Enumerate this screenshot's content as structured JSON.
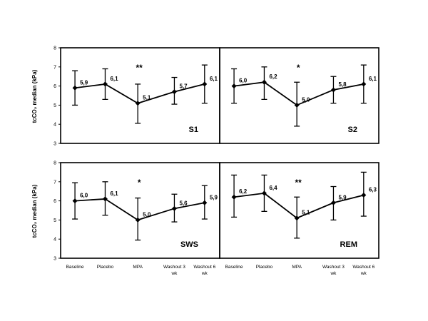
{
  "figure": {
    "ylabel_top": "tcCO₂ median (kPa)",
    "ylabel_bottom": "tcCO₂ median (kPa)"
  },
  "chart_data": [
    {
      "type": "line",
      "panel": "S1",
      "categories": [
        "Baseline",
        "Placebo",
        "MPA",
        "Washout 3 wk",
        "Washout 6 wk"
      ],
      "values": [
        5.9,
        6.1,
        5.1,
        5.7,
        6.1
      ],
      "value_labels": [
        "5,9",
        "6,1",
        "5,1",
        "5,7",
        "6,1"
      ],
      "error_low": [
        5.0,
        5.3,
        4.05,
        5.05,
        5.1
      ],
      "error_high": [
        6.8,
        6.9,
        6.1,
        6.45,
        7.1
      ],
      "significance": {
        "category": "MPA",
        "marker": "**"
      },
      "ylim": [
        3,
        8
      ],
      "yticks": [
        "3",
        "4",
        "5",
        "6",
        "7",
        "8"
      ],
      "ylabel": "tcCO₂ median (kPa)"
    },
    {
      "type": "line",
      "panel": "S2",
      "categories": [
        "Baseline",
        "Placebo",
        "MPA",
        "Washout 3 wk",
        "Washout 6 wk"
      ],
      "values": [
        6.0,
        6.2,
        5.0,
        5.8,
        6.1
      ],
      "value_labels": [
        "6,0",
        "6,2",
        "5,0",
        "5,8",
        "6,1"
      ],
      "error_low": [
        5.1,
        5.3,
        3.9,
        5.1,
        5.1
      ],
      "error_high": [
        6.9,
        7.0,
        6.2,
        6.5,
        7.1
      ],
      "significance": {
        "category": "MPA",
        "marker": "*"
      },
      "ylim": [
        3,
        8
      ]
    },
    {
      "type": "line",
      "panel": "SWS",
      "categories": [
        "Baseline",
        "Placebo",
        "MPA",
        "Washout 3 wk",
        "Washout 6 wk"
      ],
      "values": [
        6.0,
        6.1,
        5.0,
        5.6,
        5.9
      ],
      "value_labels": [
        "6,0",
        "6,1",
        "5,0",
        "5,6",
        "5,9"
      ],
      "error_low": [
        5.05,
        5.25,
        3.95,
        4.9,
        5.05
      ],
      "error_high": [
        6.95,
        7.0,
        6.15,
        6.35,
        6.8
      ],
      "significance": {
        "category": "MPA",
        "marker": "*"
      },
      "ylim": [
        3,
        8
      ],
      "yticks": [
        "3",
        "4",
        "5",
        "6",
        "7",
        "8"
      ],
      "ylabel": "tcCO₂ median (kPa)"
    },
    {
      "type": "line",
      "panel": "REM",
      "categories": [
        "Baseline",
        "Placebo",
        "MPA",
        "Washout 3 wk",
        "Washout 6 wk"
      ],
      "values": [
        6.2,
        6.4,
        5.1,
        5.9,
        6.3
      ],
      "value_labels": [
        "6,2",
        "6,4",
        "5,1",
        "5,9",
        "6,3"
      ],
      "error_low": [
        5.15,
        5.45,
        4.05,
        5.0,
        5.2
      ],
      "error_high": [
        7.35,
        7.35,
        6.2,
        6.75,
        7.5
      ],
      "significance": {
        "category": "MPA",
        "marker": "**"
      },
      "ylim": [
        3,
        8
      ]
    }
  ],
  "xaxis": {
    "labels": [
      [
        "Baseline"
      ],
      [
        "Placebo"
      ],
      [
        "MPA"
      ],
      [
        "Washout 3",
        "wk"
      ],
      [
        "Washout 6",
        "wk"
      ]
    ]
  }
}
